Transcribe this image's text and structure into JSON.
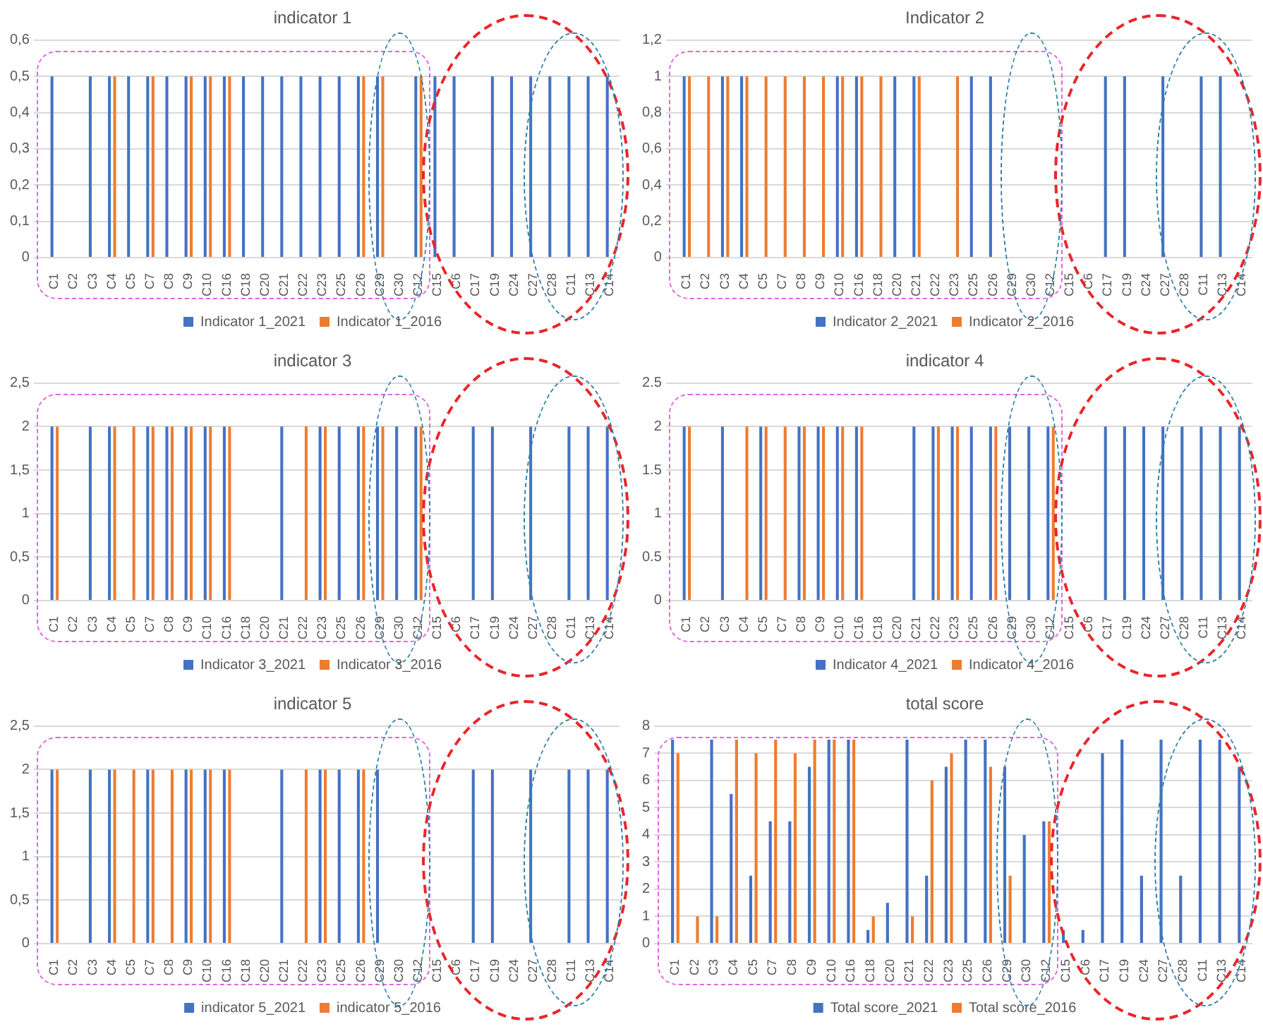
{
  "chart_data": [
    {
      "type": "bar",
      "title": "indicator 1",
      "categories": [
        "C1",
        "C2",
        "C3",
        "C4",
        "C5",
        "C7",
        "C8",
        "C9",
        "C10",
        "C16",
        "C18",
        "C20",
        "C21",
        "C22",
        "C23",
        "C25",
        "C26",
        "C29",
        "C30",
        "C12",
        "C15",
        "C6",
        "C17",
        "C19",
        "C24",
        "C27",
        "C28",
        "C11",
        "C13",
        "C14"
      ],
      "series": [
        {
          "name": "Indicator 1_2021",
          "color": "#4472c4",
          "values": [
            0.5,
            null,
            0.5,
            0.5,
            0.5,
            0.5,
            0.5,
            0.5,
            0.5,
            0.5,
            0.5,
            0.5,
            0.5,
            0.5,
            0.5,
            0.5,
            0.5,
            0.5,
            null,
            0.5,
            0.5,
            0.5,
            null,
            0.5,
            0.5,
            0.5,
            0.5,
            0.5,
            0.5,
            0.5
          ]
        },
        {
          "name": "Indicator 1_2016",
          "color": "#ed7d31",
          "values": [
            null,
            null,
            null,
            0.5,
            null,
            0.5,
            null,
            0.5,
            0.5,
            0.5,
            null,
            null,
            null,
            null,
            null,
            null,
            0.5,
            0.5,
            null,
            0.5,
            null,
            null,
            null,
            null,
            null,
            null,
            null,
            null,
            null,
            null
          ]
        }
      ],
      "ylim": [
        0,
        0.6
      ],
      "yticks": [
        0,
        {
          "value": 0.1,
          "label": "0,1"
        },
        {
          "value": 0.2,
          "label": "0,2"
        },
        {
          "value": 0.3,
          "label": "0,3"
        },
        {
          "value": 0.4,
          "label": "0,4"
        },
        {
          "value": 0.5,
          "label": "0,5"
        },
        {
          "value": 0.6,
          "label": "0,6"
        }
      ],
      "grid": "y",
      "legend": "bottom"
    },
    {
      "type": "bar",
      "title": "Indicator 2",
      "categories": [
        "C1",
        "C2",
        "C3",
        "C4",
        "C5",
        "C7",
        "C8",
        "C9",
        "C10",
        "C16",
        "C18",
        "C20",
        "C21",
        "C22",
        "C23",
        "C25",
        "C26",
        "C29",
        "C30",
        "C12",
        "C15",
        "C6",
        "C17",
        "C19",
        "C24",
        "C27",
        "C28",
        "C11",
        "C13",
        "C14"
      ],
      "series": [
        {
          "name": "Indicator 2_2021",
          "color": "#4472c4",
          "values": [
            1,
            null,
            1,
            1,
            null,
            null,
            null,
            null,
            1,
            1,
            null,
            1,
            1,
            null,
            null,
            1,
            1,
            null,
            null,
            null,
            null,
            null,
            1,
            1,
            null,
            1,
            null,
            1,
            1,
            null
          ]
        },
        {
          "name": "Indicator 2_2016",
          "color": "#ed7d31",
          "values": [
            1,
            1,
            1,
            1,
            1,
            1,
            1,
            1,
            1,
            1,
            1,
            null,
            1,
            null,
            1,
            null,
            null,
            null,
            null,
            null,
            null,
            null,
            null,
            null,
            null,
            null,
            null,
            null,
            null,
            null
          ]
        }
      ],
      "ylim": [
        0,
        1.2
      ],
      "yticks": [
        0,
        {
          "value": 0.2,
          "label": "0,2"
        },
        {
          "value": 0.4,
          "label": "0,4"
        },
        {
          "value": 0.6,
          "label": "0,6"
        },
        {
          "value": 0.8,
          "label": "0,8"
        },
        1,
        {
          "value": 1.2,
          "label": "1,2"
        }
      ],
      "grid": "y",
      "legend": "bottom"
    },
    {
      "type": "bar",
      "title": "indicator 3",
      "categories": [
        "C1",
        "C2",
        "C3",
        "C4",
        "C5",
        "C7",
        "C8",
        "C9",
        "C10",
        "C16",
        "C18",
        "C20",
        "C21",
        "C22",
        "C23",
        "C25",
        "C26",
        "C29",
        "C30",
        "C12",
        "C15",
        "C6",
        "C17",
        "C19",
        "C24",
        "C27",
        "C28",
        "C11",
        "C13",
        "C14"
      ],
      "series": [
        {
          "name": "Indicator 3_2021",
          "color": "#4472c4",
          "values": [
            2,
            null,
            2,
            2,
            null,
            2,
            2,
            2,
            2,
            2,
            null,
            null,
            2,
            null,
            2,
            2,
            2,
            2,
            2,
            2,
            null,
            null,
            2,
            2,
            null,
            2,
            null,
            2,
            2,
            2
          ]
        },
        {
          "name": "Indicator 3_2016",
          "color": "#ed7d31",
          "values": [
            2,
            null,
            null,
            2,
            2,
            2,
            2,
            2,
            2,
            2,
            null,
            null,
            null,
            2,
            2,
            null,
            2,
            2,
            null,
            2,
            null,
            null,
            null,
            null,
            null,
            null,
            null,
            null,
            null,
            null
          ]
        }
      ],
      "ylim": [
        0,
        2.5
      ],
      "yticks": [
        0,
        {
          "value": 0.5,
          "label": "0,5"
        },
        1,
        {
          "value": 1.5,
          "label": "1,5"
        },
        2,
        {
          "value": 2.5,
          "label": "2,5"
        }
      ],
      "grid": "y",
      "legend": "bottom"
    },
    {
      "type": "bar",
      "title": "indicator 4",
      "categories": [
        "C1",
        "C2",
        "C3",
        "C4",
        "C5",
        "C7",
        "C8",
        "C9",
        "C10",
        "C16",
        "C18",
        "C20",
        "C21",
        "C22",
        "C23",
        "C25",
        "C26",
        "C29",
        "C30",
        "C12",
        "C15",
        "C6",
        "C17",
        "C19",
        "C24",
        "C27",
        "C28",
        "C11",
        "C13",
        "C14"
      ],
      "series": [
        {
          "name": "Indicator 4_2021",
          "color": "#4472c4",
          "values": [
            2,
            null,
            2,
            null,
            2,
            null,
            2,
            2,
            2,
            2,
            null,
            null,
            2,
            2,
            2,
            2,
            2,
            2,
            2,
            2,
            null,
            null,
            2,
            2,
            2,
            2,
            2,
            2,
            2,
            2
          ]
        },
        {
          "name": "Indicator 4_2016",
          "color": "#ed7d31",
          "values": [
            2,
            null,
            null,
            2,
            2,
            2,
            2,
            2,
            2,
            2,
            null,
            null,
            null,
            2,
            2,
            null,
            2,
            null,
            null,
            2,
            null,
            null,
            null,
            null,
            null,
            null,
            null,
            null,
            null,
            null
          ]
        }
      ],
      "ylim": [
        0,
        2.5
      ],
      "yticks": [
        0,
        0.5,
        1,
        1.5,
        2,
        2.5
      ],
      "grid": "y",
      "legend": "bottom"
    },
    {
      "type": "bar",
      "title": "indicator 5",
      "categories": [
        "C1",
        "C2",
        "C3",
        "C4",
        "C5",
        "C7",
        "C8",
        "C9",
        "C10",
        "C16",
        "C18",
        "C20",
        "C21",
        "C22",
        "C23",
        "C25",
        "C26",
        "C29",
        "C30",
        "C12",
        "C15",
        "C6",
        "C17",
        "C19",
        "C24",
        "C27",
        "C28",
        "C11",
        "C13",
        "C14"
      ],
      "series": [
        {
          "name": "indicator 5_2021",
          "color": "#4472c4",
          "values": [
            2,
            null,
            2,
            2,
            null,
            2,
            null,
            2,
            2,
            2,
            null,
            null,
            2,
            null,
            2,
            2,
            2,
            2,
            null,
            null,
            null,
            null,
            2,
            2,
            null,
            2,
            null,
            2,
            2,
            2
          ]
        },
        {
          "name": "indicator 5_2016",
          "color": "#ed7d31",
          "values": [
            2,
            null,
            null,
            2,
            2,
            2,
            2,
            2,
            2,
            2,
            null,
            null,
            null,
            2,
            2,
            null,
            2,
            null,
            null,
            null,
            null,
            null,
            null,
            null,
            null,
            null,
            null,
            null,
            null,
            null
          ]
        }
      ],
      "ylim": [
        0,
        2.5
      ],
      "yticks": [
        0,
        {
          "value": 0.5,
          "label": "0,5"
        },
        1,
        {
          "value": 1.5,
          "label": "1,5"
        },
        2,
        {
          "value": 2.5,
          "label": "2,5"
        }
      ],
      "grid": "y",
      "legend": "bottom"
    },
    {
      "type": "bar",
      "title": "total score",
      "categories": [
        "C1",
        "C2",
        "C3",
        "C4",
        "C5",
        "C7",
        "C8",
        "C9",
        "C10",
        "C16",
        "C18",
        "C20",
        "C21",
        "C22",
        "C23",
        "C25",
        "C26",
        "C29",
        "C30",
        "C12",
        "C15",
        "C6",
        "C17",
        "C19",
        "C24",
        "C27",
        "C28",
        "C11",
        "C13",
        "C14"
      ],
      "series": [
        {
          "name": "Total score_2021",
          "color": "#4472c4",
          "values": [
            7.5,
            null,
            7.5,
            5.5,
            2.5,
            4.5,
            4.5,
            6.5,
            7.5,
            7.5,
            0.5,
            1.5,
            7.5,
            2.5,
            6.5,
            7.5,
            7.5,
            6.5,
            4,
            4.5,
            0.5,
            0.5,
            7,
            7.5,
            2.5,
            7.5,
            2.5,
            7.5,
            7.5,
            6.5
          ]
        },
        {
          "name": "Total score_2016",
          "color": "#ed7d31",
          "values": [
            7,
            1,
            1,
            7.5,
            7,
            7.5,
            7,
            7.5,
            7.5,
            7.5,
            1,
            null,
            1,
            6,
            7,
            null,
            6.5,
            2.5,
            null,
            4.5,
            null,
            null,
            null,
            null,
            null,
            null,
            null,
            null,
            null,
            null
          ]
        }
      ],
      "ylim": [
        0,
        8
      ],
      "yticks": [
        0,
        1,
        2,
        3,
        4,
        5,
        6,
        7,
        8
      ],
      "grid": "y",
      "legend": "bottom"
    }
  ]
}
